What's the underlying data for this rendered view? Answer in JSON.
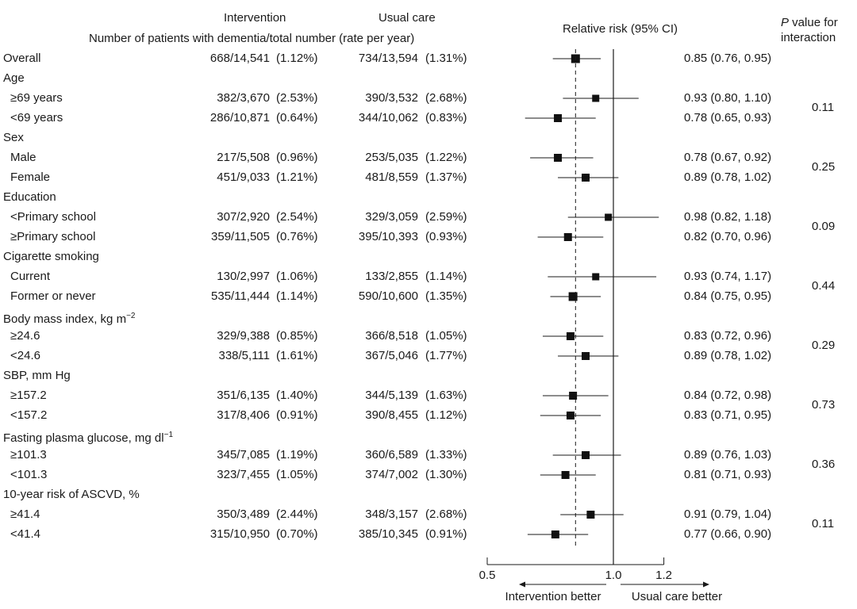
{
  "headers": {
    "intervention": "Intervention",
    "usual_care": "Usual care",
    "subtitle": "Number of patients with dementia/total number (rate per year)",
    "rr": "Relative risk (95% CI)",
    "p_italic": "P",
    "p_rest": " value for",
    "p_line2": "interaction"
  },
  "chart_data": {
    "type": "forest",
    "xlim": [
      0.5,
      1.2
    ],
    "x_ticks": [
      {
        "value": 0.5,
        "label": "0.5"
      },
      {
        "value": 1.0,
        "label": "1.0"
      },
      {
        "value": 1.2,
        "label": "1.2"
      }
    ],
    "reference_line": 1.0,
    "overall_estimate": 0.85,
    "x_left_label": "Intervention better",
    "x_right_label": "Usual care better",
    "rows": [
      {
        "label": "Overall",
        "type": "data",
        "int_n": "668/14,541",
        "int_rate": "(1.12%)",
        "uc_n": "734/13,594",
        "uc_rate": "(1.31%)",
        "rr": 0.85,
        "lo": 0.76,
        "hi": 0.95,
        "rr_text": "0.85 (0.76, 0.95)",
        "size": 1.0
      },
      {
        "label": "Age",
        "type": "header"
      },
      {
        "label": "≥69 years",
        "type": "data",
        "int_n": "382/3,670",
        "int_rate": "(2.53%)",
        "uc_n": "390/3,532",
        "uc_rate": "(2.68%)",
        "rr": 0.93,
        "lo": 0.8,
        "hi": 1.1,
        "rr_text": "0.93 (0.80, 1.10)",
        "size": 0.65
      },
      {
        "label": "<69 years",
        "type": "data",
        "int_n": "286/10,871",
        "int_rate": "(0.64%)",
        "uc_n": "344/10,062",
        "uc_rate": "(0.83%)",
        "rr": 0.78,
        "lo": 0.65,
        "hi": 0.93,
        "rr_text": "0.78 (0.65, 0.93)",
        "size": 0.8
      },
      {
        "label": "Sex",
        "type": "header"
      },
      {
        "label": "Male",
        "type": "data",
        "int_n": "217/5,508",
        "int_rate": "(0.96%)",
        "uc_n": "253/5,035",
        "uc_rate": "(1.22%)",
        "rr": 0.78,
        "lo": 0.67,
        "hi": 0.92,
        "rr_text": "0.78 (0.67, 0.92)",
        "size": 0.8
      },
      {
        "label": "Female",
        "type": "data",
        "int_n": "451/9,033",
        "int_rate": "(1.21%)",
        "uc_n": "481/8,559",
        "uc_rate": "(1.37%)",
        "rr": 0.89,
        "lo": 0.78,
        "hi": 1.02,
        "rr_text": "0.89 (0.78, 1.02)",
        "size": 0.85
      },
      {
        "label": "Education",
        "type": "header"
      },
      {
        "label": "<Primary school",
        "type": "data",
        "int_n": "307/2,920",
        "int_rate": "(2.54%)",
        "uc_n": "329/3,059",
        "uc_rate": "(2.59%)",
        "rr": 0.98,
        "lo": 0.82,
        "hi": 1.18,
        "rr_text": "0.98 (0.82, 1.18)",
        "size": 0.65
      },
      {
        "label": "≥Primary school",
        "type": "data",
        "int_n": "359/11,505",
        "int_rate": "(0.76%)",
        "uc_n": "395/10,393",
        "uc_rate": "(0.93%)",
        "rr": 0.82,
        "lo": 0.7,
        "hi": 0.96,
        "rr_text": "0.82 (0.70, 0.96)",
        "size": 0.8
      },
      {
        "label": "Cigarette smoking",
        "type": "header"
      },
      {
        "label": "Current",
        "type": "data",
        "int_n": "130/2,997",
        "int_rate": "(1.06%)",
        "uc_n": "133/2,855",
        "uc_rate": "(1.14%)",
        "rr": 0.93,
        "lo": 0.74,
        "hi": 1.17,
        "rr_text": "0.93 (0.74, 1.17)",
        "size": 0.6
      },
      {
        "label": "Former or never",
        "type": "data",
        "int_n": "535/11,444",
        "int_rate": "(1.14%)",
        "uc_n": "590/10,600",
        "uc_rate": "(1.35%)",
        "rr": 0.84,
        "lo": 0.75,
        "hi": 0.95,
        "rr_text": "0.84 (0.75, 0.95)",
        "size": 0.95
      },
      {
        "label": "Body mass index, kg m",
        "sup": "−2",
        "type": "header"
      },
      {
        "label": "≥24.6",
        "type": "data",
        "int_n": "329/9,388",
        "int_rate": "(0.85%)",
        "uc_n": "366/8,518",
        "uc_rate": "(1.05%)",
        "rr": 0.83,
        "lo": 0.72,
        "hi": 0.96,
        "rr_text": "0.83 (0.72, 0.96)",
        "size": 0.85
      },
      {
        "label": "<24.6",
        "type": "data",
        "int_n": "338/5,111",
        "int_rate": "(1.61%)",
        "uc_n": "367/5,046",
        "uc_rate": "(1.77%)",
        "rr": 0.89,
        "lo": 0.78,
        "hi": 1.02,
        "rr_text": "0.89 (0.78, 1.02)",
        "size": 0.8
      },
      {
        "label": "SBP, mm Hg",
        "type": "header"
      },
      {
        "label": "≥157.2",
        "type": "data",
        "int_n": "351/6,135",
        "int_rate": "(1.40%)",
        "uc_n": "344/5,139",
        "uc_rate": "(1.63%)",
        "rr": 0.84,
        "lo": 0.72,
        "hi": 0.98,
        "rr_text": "0.84 (0.72, 0.98)",
        "size": 0.8
      },
      {
        "label": "<157.2",
        "type": "data",
        "int_n": "317/8,406",
        "int_rate": "(0.91%)",
        "uc_n": "390/8,455",
        "uc_rate": "(1.12%)",
        "rr": 0.83,
        "lo": 0.71,
        "hi": 0.95,
        "rr_text": "0.83 (0.71, 0.95)",
        "size": 0.85
      },
      {
        "label": "Fasting plasma glucose, mg dl",
        "sup": "−1",
        "type": "header"
      },
      {
        "label": "≥101.3",
        "type": "data",
        "int_n": "345/7,085",
        "int_rate": "(1.19%)",
        "uc_n": "360/6,589",
        "uc_rate": "(1.33%)",
        "rr": 0.89,
        "lo": 0.76,
        "hi": 1.03,
        "rr_text": "0.89 (0.76, 1.03)",
        "size": 0.8
      },
      {
        "label": "<101.3",
        "type": "data",
        "int_n": "323/7,455",
        "int_rate": "(1.05%)",
        "uc_n": "374/7,002",
        "uc_rate": "(1.30%)",
        "rr": 0.81,
        "lo": 0.71,
        "hi": 0.93,
        "rr_text": "0.81 (0.71, 0.93)",
        "size": 0.85
      },
      {
        "label": "10-year risk of ASCVD, %",
        "type": "header"
      },
      {
        "label": "≥41.4",
        "type": "data",
        "int_n": "350/3,489",
        "int_rate": "(2.44%)",
        "uc_n": "348/3,157",
        "uc_rate": "(2.68%)",
        "rr": 0.91,
        "lo": 0.79,
        "hi": 1.04,
        "rr_text": "0.91 (0.79, 1.04)",
        "size": 0.8
      },
      {
        "label": "<41.4",
        "type": "data",
        "int_n": "315/10,950",
        "int_rate": "(0.70%)",
        "uc_n": "385/10,345",
        "uc_rate": "(0.91%)",
        "rr": 0.77,
        "lo": 0.66,
        "hi": 0.9,
        "rr_text": "0.77 (0.66, 0.90)",
        "size": 0.85
      }
    ],
    "p_values": [
      {
        "value": "0.11",
        "rows": [
          2,
          3
        ]
      },
      {
        "value": "0.25",
        "rows": [
          5,
          6
        ]
      },
      {
        "value": "0.09",
        "rows": [
          8,
          9
        ]
      },
      {
        "value": "0.44",
        "rows": [
          11,
          12
        ]
      },
      {
        "value": "0.29",
        "rows": [
          14,
          15
        ]
      },
      {
        "value": "0.73",
        "rows": [
          17,
          18
        ]
      },
      {
        "value": "0.36",
        "rows": [
          20,
          21
        ]
      },
      {
        "value": "0.11",
        "rows": [
          23,
          24
        ]
      }
    ]
  }
}
